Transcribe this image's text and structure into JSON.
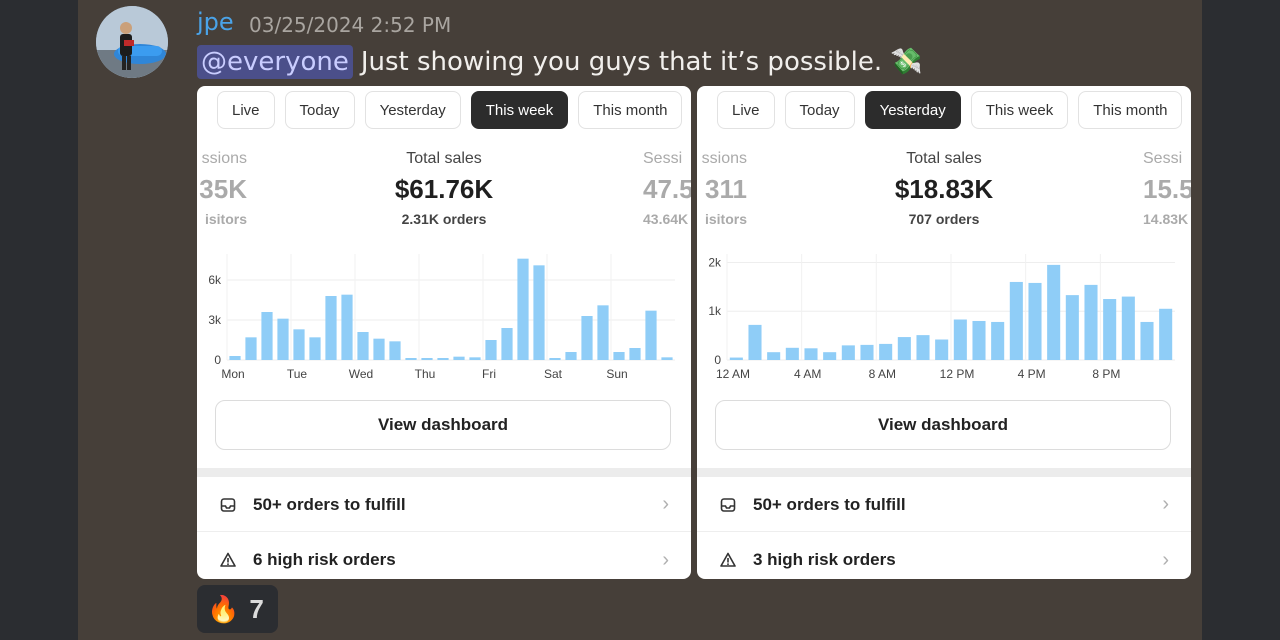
{
  "message": {
    "author": "jpe",
    "timestamp": "03/25/2024 2:52 PM",
    "mention": "@everyone",
    "text": "Just showing you guys that it’s possible.",
    "emoji_name": "money-with-wings-emoji",
    "emoji": "💸"
  },
  "reaction": {
    "emoji": "🔥",
    "count": "7"
  },
  "cards": [
    {
      "tabs": [
        "Live",
        "Today",
        "Yesterday",
        "This week",
        "This month"
      ],
      "active_tab": "This week",
      "left_metric": {
        "label": "ssions",
        "value": "35K",
        "sub": "isitors"
      },
      "center_metric": {
        "label": "Total sales",
        "value": "$61.76K",
        "sub": "2.31K orders"
      },
      "right_metric": {
        "label": "Sessi",
        "value": "47.5",
        "sub": "43.64K"
      },
      "view_dashboard": "View dashboard",
      "rows": [
        {
          "icon": "inbox-icon",
          "label": "50+ orders to fulfill"
        },
        {
          "icon": "warning-icon",
          "label": "6 high risk orders"
        }
      ],
      "chart_data": {
        "type": "bar",
        "yticks": [
          "0",
          "3k",
          "6k"
        ],
        "ylim": [
          0,
          7500
        ],
        "xticks": [
          "Mon",
          "Tue",
          "Wed",
          "Thu",
          "Fri",
          "Sat",
          "Sun"
        ],
        "bar_color": "#8fcdf7",
        "values": [
          300,
          1700,
          3600,
          3100,
          2300,
          1700,
          4800,
          4900,
          2100,
          1600,
          1400,
          100,
          120,
          150,
          250,
          200,
          1500,
          2400,
          7600,
          7100,
          100,
          600,
          3300,
          4100,
          600,
          900,
          3700,
          200
        ]
      }
    },
    {
      "tabs": [
        "Live",
        "Today",
        "Yesterday",
        "This week",
        "This month"
      ],
      "active_tab": "Yesterday",
      "left_metric": {
        "label": "ssions",
        "value": "311",
        "sub": "isitors"
      },
      "center_metric": {
        "label": "Total sales",
        "value": "$18.83K",
        "sub": "707 orders"
      },
      "right_metric": {
        "label": "Sessi",
        "value": "15.5",
        "sub": "14.83K"
      },
      "view_dashboard": "View dashboard",
      "rows": [
        {
          "icon": "inbox-icon",
          "label": "50+ orders to fulfill"
        },
        {
          "icon": "warning-icon",
          "label": "3 high risk orders"
        }
      ],
      "chart_data": {
        "type": "bar",
        "yticks": [
          "0",
          "1k",
          "2k"
        ],
        "ylim": [
          0,
          2050
        ],
        "xticks": [
          "12 AM",
          "4 AM",
          "8 AM",
          "12 PM",
          "4 PM",
          "8 PM"
        ],
        "bar_color": "#8fcdf7",
        "values": [
          50,
          720,
          160,
          250,
          240,
          160,
          300,
          310,
          330,
          470,
          510,
          420,
          830,
          800,
          780,
          1600,
          1580,
          1950,
          1330,
          1540,
          1250,
          1300,
          780,
          1050
        ]
      }
    }
  ]
}
